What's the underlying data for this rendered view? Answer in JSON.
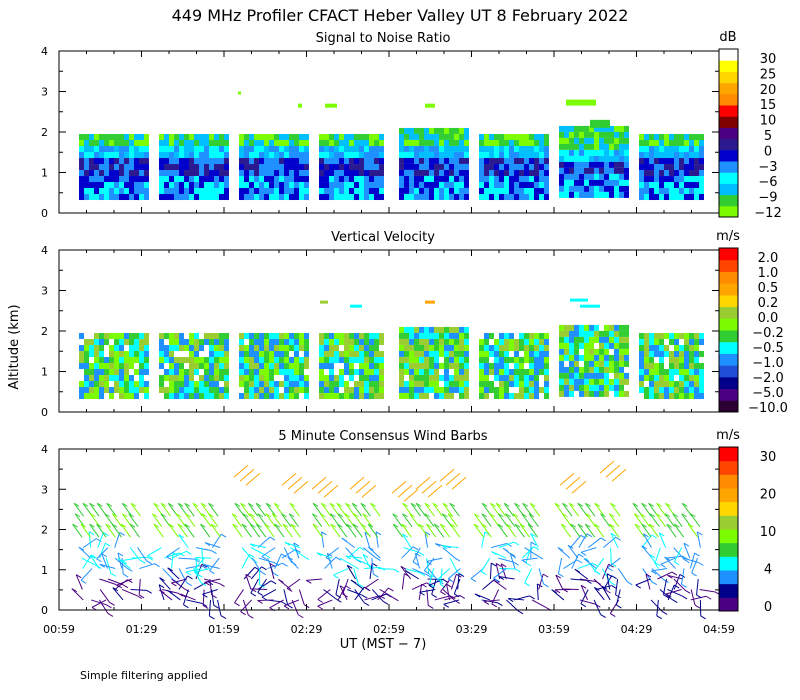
{
  "title": "449 MHz Profiler CFACT Heber Valley UT  8 February 2022",
  "footnote": "Simple filtering applied",
  "colors": {
    "snr": [
      "#7cfc00",
      "#32cd32",
      "#00bfff",
      "#00ffff",
      "#1e90ff",
      "#0000cd",
      "#2b1a8f",
      "#4b0082",
      "#800000",
      "#ff0000",
      "#ff8c00",
      "#ffa500",
      "#ffd700",
      "#ffff00",
      "#ffffff"
    ],
    "velocity": [
      "#2b0033",
      "#4b0082",
      "#00008b",
      "#1e4fd6",
      "#1e90ff",
      "#00ffff",
      "#32cd32",
      "#7cfc00",
      "#9acd32",
      "#ffd700",
      "#ffa500",
      "#ff8c00",
      "#ff4500",
      "#ff0000"
    ],
    "wind": [
      "#4b0082",
      "#00008b",
      "#1e90ff",
      "#00ffff",
      "#32cd32",
      "#7cfc00",
      "#9acd32",
      "#ffd700",
      "#ffa500",
      "#ff8c00",
      "#ff4500",
      "#ff0000"
    ]
  },
  "chart_data": [
    {
      "type": "heatmap",
      "title": "Signal to Noise Ratio",
      "ylabel": "",
      "ylim": [
        0,
        4
      ],
      "yticks": [
        "0",
        "1",
        "2",
        "3",
        "4"
      ],
      "colorbar_unit": "dB",
      "colorbar_labels": [
        "30",
        "25",
        "20",
        "15",
        "10",
        "5",
        "0",
        "−3",
        "−6",
        "−9",
        "−12"
      ],
      "grid": false
    },
    {
      "type": "heatmap",
      "title": "Vertical Velocity",
      "ylabel": "Altitude (km)",
      "ylim": [
        0,
        4
      ],
      "yticks": [
        "0",
        "1",
        "2",
        "3",
        "4"
      ],
      "colorbar_unit": "m/s",
      "colorbar_labels": [
        "2.0",
        "1.0",
        "0.5",
        "0.2",
        "0.0",
        "−0.2",
        "−0.5",
        "−1.0",
        "−2.0",
        "−5.0",
        "−10.0"
      ],
      "grid": false
    },
    {
      "type": "scatter",
      "title": "5 Minute Consensus Wind Barbs",
      "ylabel": "",
      "ylim": [
        0,
        4
      ],
      "yticks": [
        "0",
        "1",
        "2",
        "3",
        "4"
      ],
      "xlabel": "UT  (MST − 7)",
      "x_ticks": [
        "00:59",
        "01:29",
        "01:59",
        "02:29",
        "02:59",
        "03:29",
        "03:59",
        "04:29",
        "04:59"
      ],
      "colorbar_unit": "m/s",
      "colorbar_labels": [
        "30",
        "20",
        "10",
        "4",
        "0"
      ],
      "grid": false
    }
  ]
}
